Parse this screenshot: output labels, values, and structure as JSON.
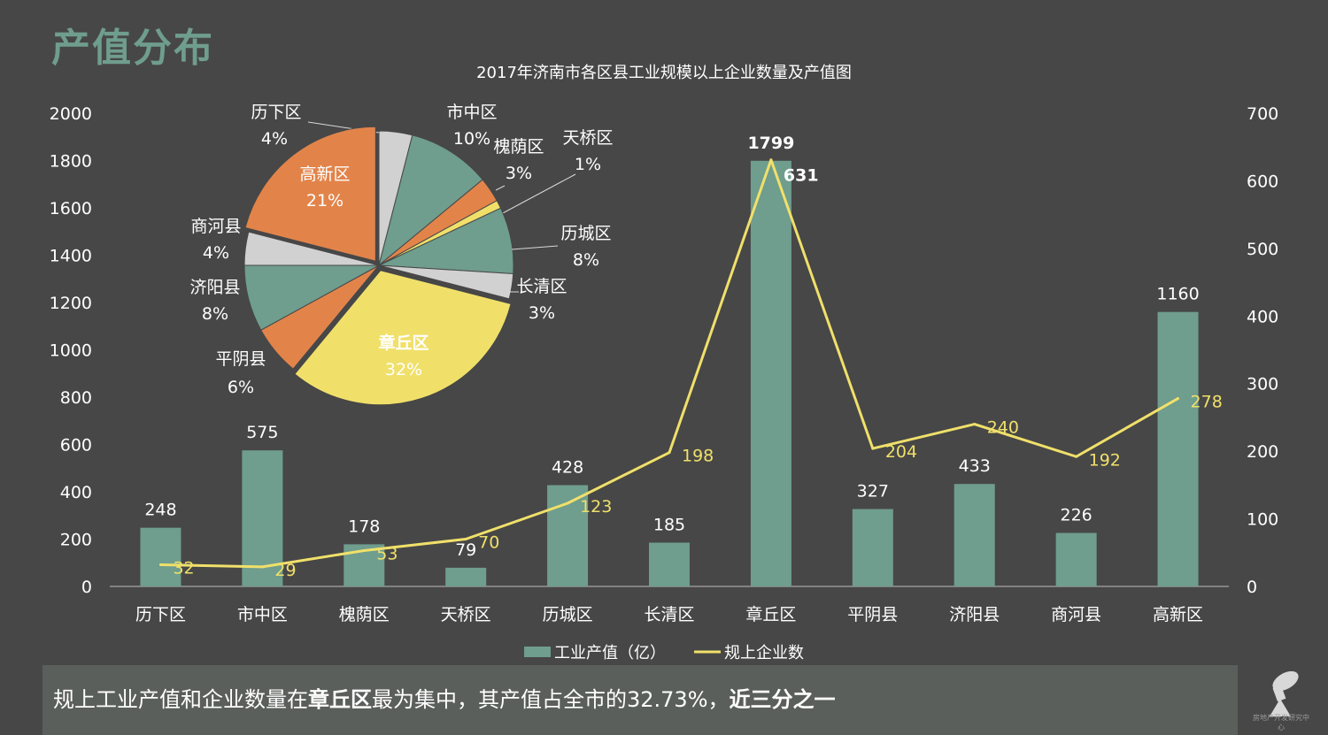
{
  "slide_title": "产值分布",
  "chart_data": [
    {
      "type": "bar",
      "title": "2017年济南市各区县工业规模以上企业数量及产值图",
      "categories": [
        "历下区",
        "市中区",
        "槐荫区",
        "天桥区",
        "历城区",
        "长清区",
        "章丘区",
        "平阴县",
        "济阳县",
        "商河县",
        "高新区"
      ],
      "series": [
        {
          "name": "工业产值（亿）",
          "type": "bar",
          "axis": "left",
          "color": "#6f9d8e",
          "values": [
            248,
            575,
            178,
            79,
            428,
            185,
            1799,
            327,
            433,
            226,
            1160
          ]
        },
        {
          "name": "规上企业数",
          "type": "line",
          "axis": "right",
          "color": "#f0e06a",
          "values": [
            32,
            29,
            53,
            70,
            123,
            198,
            631,
            204,
            240,
            192,
            278
          ]
        }
      ],
      "ylim_left": [
        0,
        2000
      ],
      "yticks_left": [
        "0",
        "200",
        "400",
        "600",
        "800",
        "1000",
        "1200",
        "1400",
        "1600",
        "1800",
        "2000"
      ],
      "ylim_right": [
        0,
        700
      ],
      "yticks_right": [
        "0",
        "100",
        "200",
        "300",
        "400",
        "500",
        "600",
        "700"
      ],
      "grid": false,
      "legend_position": "bottom"
    },
    {
      "type": "pie",
      "slices": [
        {
          "label": "历下区",
          "value": 4,
          "pct": "4%",
          "color": "#d1d1d1"
        },
        {
          "label": "市中区",
          "value": 10,
          "pct": "10%",
          "color": "#6f9d8e"
        },
        {
          "label": "槐荫区",
          "value": 3,
          "pct": "3%",
          "color": "#e2844a"
        },
        {
          "label": "天桥区",
          "value": 1,
          "pct": "1%",
          "color": "#f0e06a"
        },
        {
          "label": "历城区",
          "value": 8,
          "pct": "8%",
          "color": "#6f9d8e"
        },
        {
          "label": "长清区",
          "value": 3,
          "pct": "3%",
          "color": "#d1d1d1"
        },
        {
          "label": "章丘区",
          "value": 32,
          "pct": "32%",
          "color": "#f0e06a"
        },
        {
          "label": "平阴县",
          "value": 6,
          "pct": "6%",
          "color": "#e2844a"
        },
        {
          "label": "济阳县",
          "value": 8,
          "pct": "8%",
          "color": "#6f9d8e"
        },
        {
          "label": "商河县",
          "value": 4,
          "pct": "4%",
          "color": "#d1d1d1"
        },
        {
          "label": "高新区",
          "value": 21,
          "pct": "21%",
          "color": "#e2844a"
        }
      ]
    }
  ],
  "caption": {
    "part1": "规上工业产值和企业数量在",
    "bold1": "章丘区",
    "part2": "最为集中，其产值占全市的32.73%，",
    "bold2": "近三分之一"
  },
  "logo": {
    "icon": "telescope-logo-icon",
    "text": "房地产开发研究中心"
  }
}
